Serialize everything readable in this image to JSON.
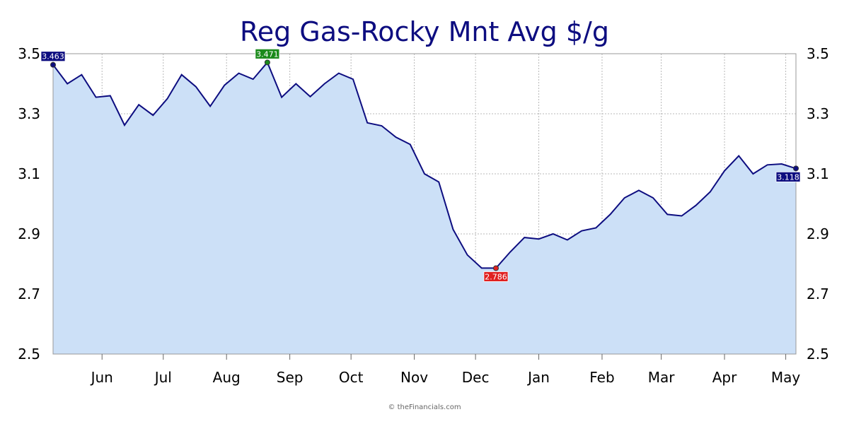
{
  "chart_data": {
    "type": "area",
    "title": "Reg Gas-Rocky Mnt Avg $/g",
    "xlabel": "",
    "ylabel": "",
    "ylim": [
      2.5,
      3.5
    ],
    "y_ticks": [
      "2.5",
      "2.7",
      "2.9",
      "3.1",
      "3.3",
      "3.5"
    ],
    "x_tick_labels": [
      "Jun",
      "Jul",
      "Aug",
      "Sep",
      "Oct",
      "Nov",
      "Dec",
      "Jan",
      "Feb",
      "Mar",
      "Apr",
      "May"
    ],
    "grid": true,
    "x": [
      "2023-05-08",
      "2023-05-15",
      "2023-05-22",
      "2023-05-29",
      "2023-06-05",
      "2023-06-12",
      "2023-06-19",
      "2023-06-26",
      "2023-07-03",
      "2023-07-10",
      "2023-07-17",
      "2023-07-24",
      "2023-07-31",
      "2023-08-07",
      "2023-08-14",
      "2023-08-21",
      "2023-08-28",
      "2023-09-04",
      "2023-09-11",
      "2023-09-18",
      "2023-09-25",
      "2023-10-02",
      "2023-10-09",
      "2023-10-16",
      "2023-10-23",
      "2023-10-30",
      "2023-11-06",
      "2023-11-13",
      "2023-11-20",
      "2023-11-27",
      "2023-12-04",
      "2023-12-11",
      "2023-12-18",
      "2023-12-25",
      "2024-01-01",
      "2024-01-08",
      "2024-01-15",
      "2024-01-22",
      "2024-01-29",
      "2024-02-05",
      "2024-02-12",
      "2024-02-19",
      "2024-02-26",
      "2024-03-04",
      "2024-03-11",
      "2024-03-18",
      "2024-03-25",
      "2024-04-01",
      "2024-04-08",
      "2024-04-15",
      "2024-04-22",
      "2024-04-29",
      "2024-05-06"
    ],
    "series": [
      {
        "values": [
          3.463,
          3.4,
          3.43,
          3.355,
          3.36,
          3.262,
          3.33,
          3.295,
          3.35,
          3.43,
          3.39,
          3.325,
          3.395,
          3.435,
          3.415,
          3.471,
          3.355,
          3.4,
          3.357,
          3.4,
          3.435,
          3.415,
          3.27,
          3.26,
          3.222,
          3.198,
          3.1,
          3.073,
          2.915,
          2.83,
          2.786,
          2.786,
          2.84,
          2.888,
          2.883,
          2.9,
          2.88,
          2.91,
          2.92,
          2.965,
          3.02,
          3.045,
          3.02,
          2.965,
          2.96,
          2.995,
          3.04,
          3.11,
          3.16,
          3.1,
          3.13,
          3.133,
          3.118
        ]
      }
    ],
    "callouts": [
      {
        "value": "3.463",
        "at_index": 0,
        "color": "#0d0d80"
      },
      {
        "value": "3.471",
        "at_index": 15,
        "color": "#1a8a1a"
      },
      {
        "value": "2.786",
        "at_index": 31,
        "color": "#e02020"
      },
      {
        "value": "3.118",
        "at_index": 52,
        "color": "#0d0d80"
      }
    ],
    "colors": {
      "line": "#0d0d80",
      "fill": "#cce0f7"
    }
  },
  "footer": {
    "credit": "© theFinancials.com"
  }
}
